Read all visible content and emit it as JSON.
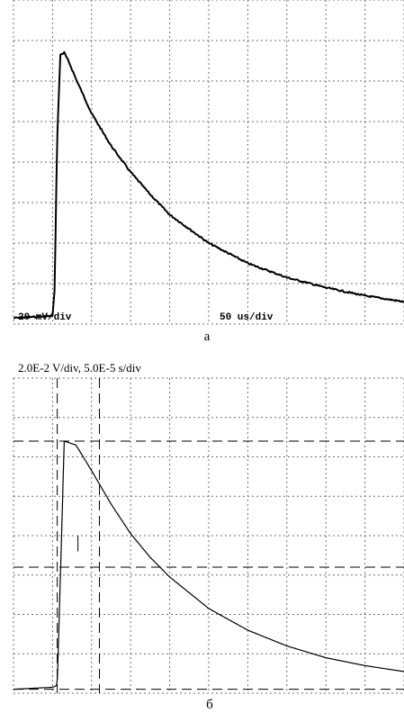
{
  "chart_data": [
    {
      "type": "line",
      "panel_label": "а",
      "volt_scale_text": "20 mV/div",
      "time_scale_text": "50 us/div",
      "grid": true,
      "divisions": {
        "x": 10,
        "y": 8
      },
      "series": [
        {
          "x_div": [
            0,
            1.0,
            1.05,
            1.12,
            1.2,
            1.3,
            1.45,
            1.6,
            2.0,
            2.5,
            3.0,
            3.5,
            4.0,
            5.0,
            6.0,
            7.0,
            8.0,
            9.0,
            10.0
          ],
          "y_div": [
            0.05,
            0.1,
            0.7,
            4.5,
            6.55,
            6.6,
            6.3,
            5.95,
            5.1,
            4.3,
            3.65,
            3.1,
            2.6,
            1.9,
            1.4,
            1.05,
            0.8,
            0.6,
            0.45
          ]
        }
      ]
    },
    {
      "type": "line",
      "panel_label": "б",
      "scale_text": "2.0E-2 V/div, 5.0E-5 s/div",
      "grid": true,
      "divisions": {
        "x": 10,
        "y": 8
      },
      "series": [
        {
          "x_div": [
            0,
            1.0,
            1.12,
            1.3,
            1.6,
            2.0,
            2.5,
            3.0,
            3.5,
            4.0,
            5.0,
            6.0,
            7.0,
            8.0,
            9.0,
            10.0
          ],
          "y_div": [
            0,
            0.05,
            0.1,
            6.3,
            6.2,
            5.55,
            4.7,
            3.95,
            3.35,
            2.85,
            2.05,
            1.5,
            1.1,
            0.8,
            0.6,
            0.45
          ]
        }
      ]
    }
  ]
}
